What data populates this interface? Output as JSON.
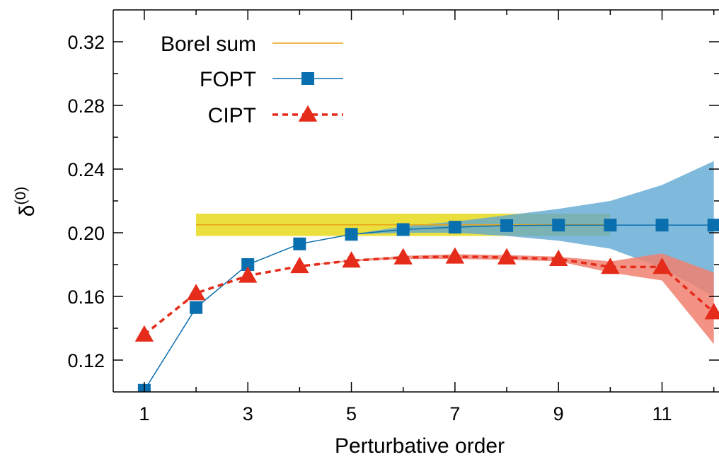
{
  "chart_data": {
    "type": "line",
    "xlabel": "Perturbative order",
    "ylabel": "δ",
    "ylabel_superscript": "(0)",
    "xlim": [
      0.4,
      12.1
    ],
    "ylim": [
      0.1,
      0.34
    ],
    "xticks": [
      1,
      3,
      5,
      7,
      9,
      11
    ],
    "yticks": [
      0.12,
      0.16,
      0.2,
      0.24,
      0.28,
      0.32
    ],
    "ytick_labels": [
      "0.12",
      "0.16",
      "0.20",
      "0.24",
      "0.28",
      "0.32"
    ],
    "grid": false,
    "legend_position": "top-left",
    "colors": {
      "borel": "#e8a317",
      "borel_band": "#e8dc28",
      "fopt": "#0a6fae",
      "fopt_band": "#5fa8d3",
      "cipt": "#e52b19",
      "cipt_band": "#f08070"
    },
    "series": [
      {
        "name": "Borel sum",
        "style": "solid-line",
        "x": [
          2,
          10
        ],
        "y": [
          0.205,
          0.205
        ],
        "band_low": 0.198,
        "band_high": 0.212
      },
      {
        "name": "FOPT",
        "style": "solid-line-square",
        "x": [
          1,
          2,
          3,
          4,
          5,
          6,
          7,
          8,
          9,
          10,
          11,
          12
        ],
        "y": [
          0.101,
          0.153,
          0.18,
          0.193,
          0.199,
          0.202,
          0.2035,
          0.2045,
          0.2048,
          0.2048,
          0.2048,
          0.2048
        ],
        "band_x": [
          5,
          6,
          7,
          8,
          9,
          10,
          11,
          12
        ],
        "band_low": [
          0.199,
          0.2,
          0.2,
          0.198,
          0.195,
          0.19,
          0.178,
          0.16
        ],
        "band_high": [
          0.199,
          0.204,
          0.207,
          0.211,
          0.215,
          0.22,
          0.23,
          0.245
        ]
      },
      {
        "name": "CIPT",
        "style": "dashed-line-triangle",
        "x": [
          1,
          2,
          3,
          4,
          5,
          6,
          7,
          8,
          9,
          10,
          11,
          12
        ],
        "y": [
          0.136,
          0.162,
          0.173,
          0.179,
          0.1825,
          0.1845,
          0.185,
          0.1845,
          0.1835,
          0.1785,
          0.1785,
          0.15
        ],
        "band_x": [
          4,
          5,
          6,
          7,
          8,
          9,
          10,
          11,
          12
        ],
        "band_low": [
          0.179,
          0.182,
          0.1835,
          0.1835,
          0.183,
          0.182,
          0.175,
          0.17,
          0.13
        ],
        "band_high": [
          0.179,
          0.183,
          0.1855,
          0.1865,
          0.186,
          0.185,
          0.182,
          0.187,
          0.175
        ]
      }
    ]
  }
}
